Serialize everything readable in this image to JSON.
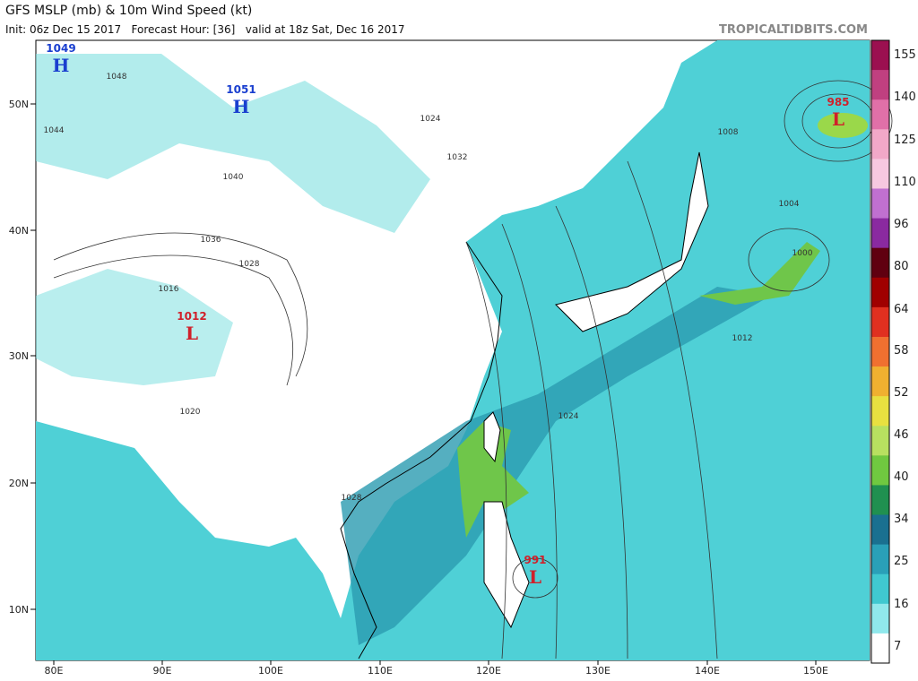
{
  "header": {
    "title": "GFS MSLP (mb) & 10m Wind Speed (kt)",
    "subtitle": "Init: 06z Dec 15 2017   Forecast Hour: [36]   valid at 18z Sat, Dec 16 2017",
    "site": "TROPICALTIDBITS.COM"
  },
  "map": {
    "latitude_labels": [
      "50N",
      "40N",
      "30N",
      "20N",
      "10N"
    ],
    "longitude_labels": [
      "80E",
      "90E",
      "100E",
      "110E",
      "120E",
      "130E",
      "140E",
      "150E"
    ],
    "pressure_centers": [
      {
        "symbol": "H",
        "value": "1049"
      },
      {
        "symbol": "H",
        "value": "1051"
      },
      {
        "symbol": "L",
        "value": "1012"
      },
      {
        "symbol": "L",
        "value": "985"
      },
      {
        "symbol": "L",
        "value": "991"
      }
    ],
    "isobar_labels": [
      "1048",
      "1044",
      "1040",
      "1036",
      "1028",
      "1024",
      "1032",
      "1020",
      "1016",
      "1008",
      "1004",
      "1000",
      "1012",
      "1024",
      "1028"
    ]
  },
  "colorbar": {
    "labels": [
      "155",
      "140",
      "125",
      "110",
      "96",
      "80",
      "64",
      "58",
      "52",
      "46",
      "40",
      "34",
      "25",
      "16",
      "7"
    ]
  }
}
